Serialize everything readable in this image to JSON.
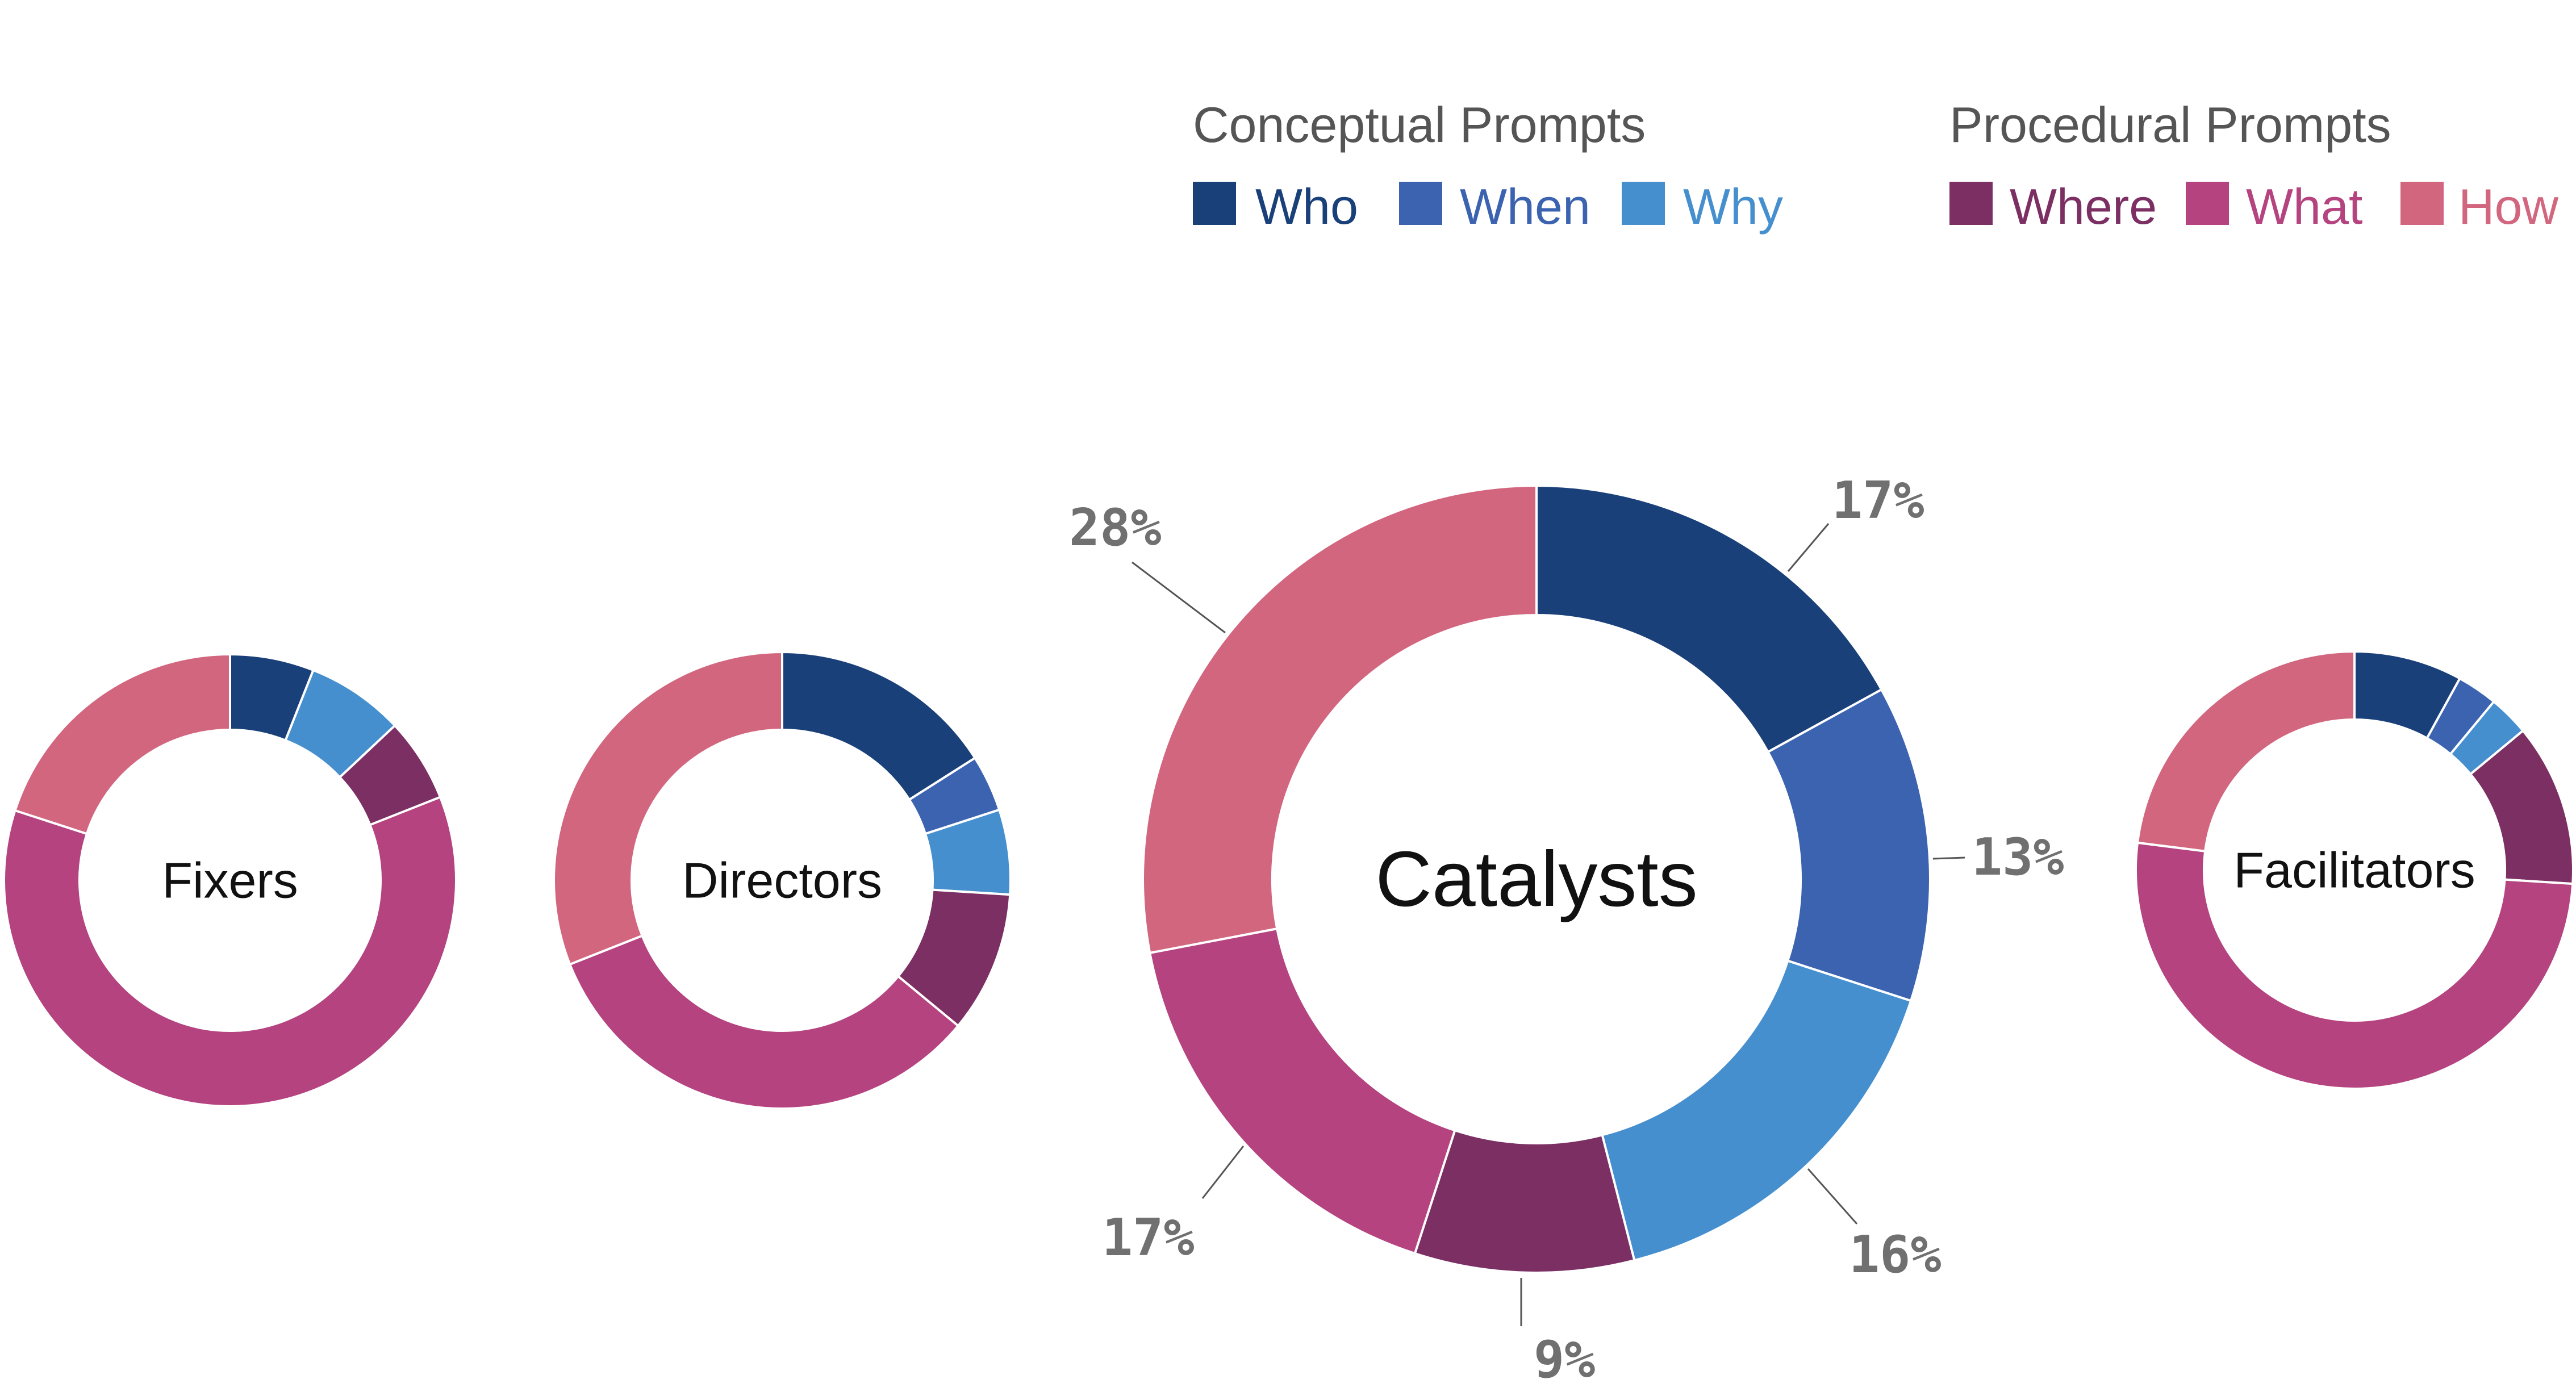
{
  "legend": {
    "groups": [
      {
        "title": "Conceptual Prompts",
        "items": [
          {
            "label": "Who",
            "color": "#1a4079"
          },
          {
            "label": "When",
            "color": "#3c63b0"
          },
          {
            "label": "Why",
            "color": "#468fcf"
          }
        ]
      },
      {
        "title": "Procedural Prompts",
        "items": [
          {
            "label": "Where",
            "color": "#7b2f63"
          },
          {
            "label": "What",
            "color": "#b4437f"
          },
          {
            "label": "How",
            "color": "#d3667f"
          }
        ]
      }
    ]
  },
  "chart_data": [
    {
      "type": "pie",
      "variant": "donut",
      "title": "Fixers",
      "categories": [
        "Who",
        "When",
        "Why",
        "Where",
        "What",
        "How"
      ],
      "values": [
        6,
        0,
        7,
        6,
        61,
        20
      ]
    },
    {
      "type": "pie",
      "variant": "donut",
      "title": "Directors",
      "categories": [
        "Who",
        "When",
        "Why",
        "Where",
        "What",
        "How"
      ],
      "values": [
        16,
        4,
        6,
        10,
        33,
        31
      ]
    },
    {
      "type": "pie",
      "variant": "donut",
      "title": "Catalysts",
      "categories": [
        "Who",
        "When",
        "Why",
        "Where",
        "What",
        "How"
      ],
      "values": [
        17,
        13,
        16,
        9,
        17,
        28
      ],
      "data_labels": [
        "17%",
        "13%",
        "16%",
        "9%",
        "17%",
        "28%"
      ]
    },
    {
      "type": "pie",
      "variant": "donut",
      "title": "Facilitators",
      "categories": [
        "Who",
        "When",
        "Why",
        "Where",
        "What",
        "How"
      ],
      "values": [
        8,
        3,
        3,
        12,
        51,
        23
      ]
    }
  ]
}
